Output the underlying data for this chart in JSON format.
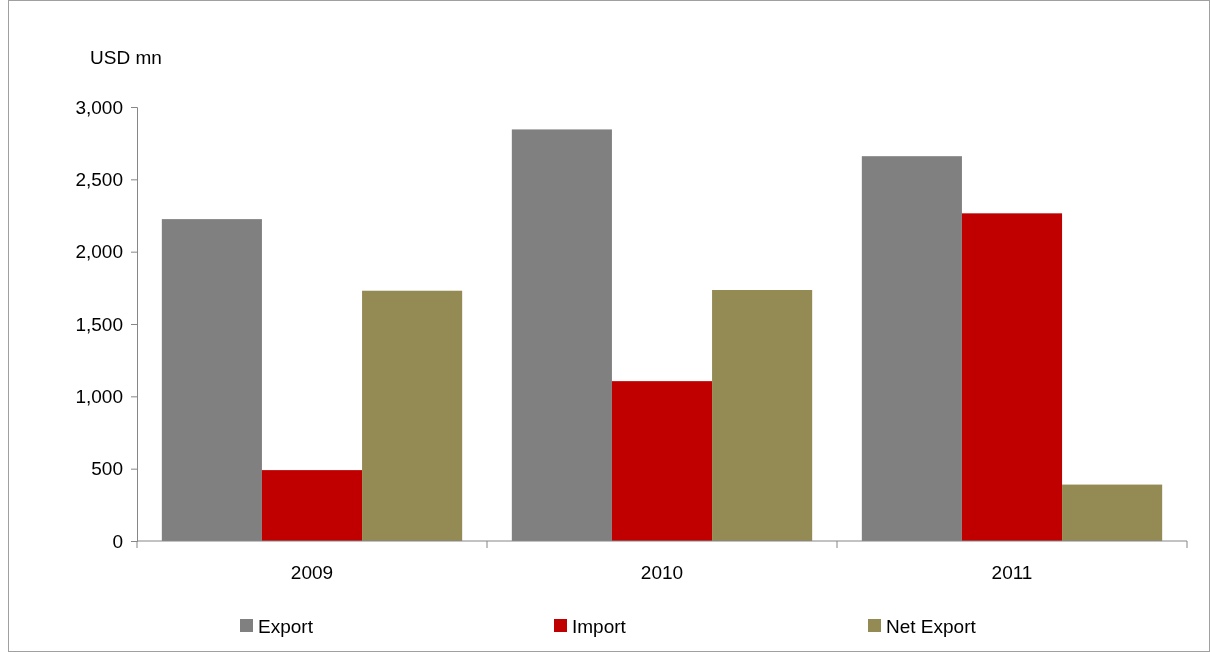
{
  "chart_data": {
    "type": "bar",
    "ylabel": "USD mn",
    "categories": [
      "2009",
      "2010",
      "2011"
    ],
    "series": [
      {
        "name": "Export",
        "color": "#808080",
        "values": [
          2225,
          2845,
          2660
        ]
      },
      {
        "name": "Import",
        "color": "#c00000",
        "values": [
          490,
          1105,
          2265
        ]
      },
      {
        "name": "Net Export",
        "color": "#948a54",
        "values": [
          1730,
          1735,
          390
        ]
      }
    ],
    "ylim": [
      0,
      3000
    ],
    "yticks": [
      {
        "value": 0,
        "label": "0"
      },
      {
        "value": 500,
        "label": "500"
      },
      {
        "value": 1000,
        "label": "1,000"
      },
      {
        "value": 1500,
        "label": "1,500"
      },
      {
        "value": 2000,
        "label": "2,000"
      },
      {
        "value": 2500,
        "label": "2,500"
      },
      {
        "value": 3000,
        "label": "3,000"
      }
    ],
    "grid": false,
    "legend": "bottom"
  }
}
